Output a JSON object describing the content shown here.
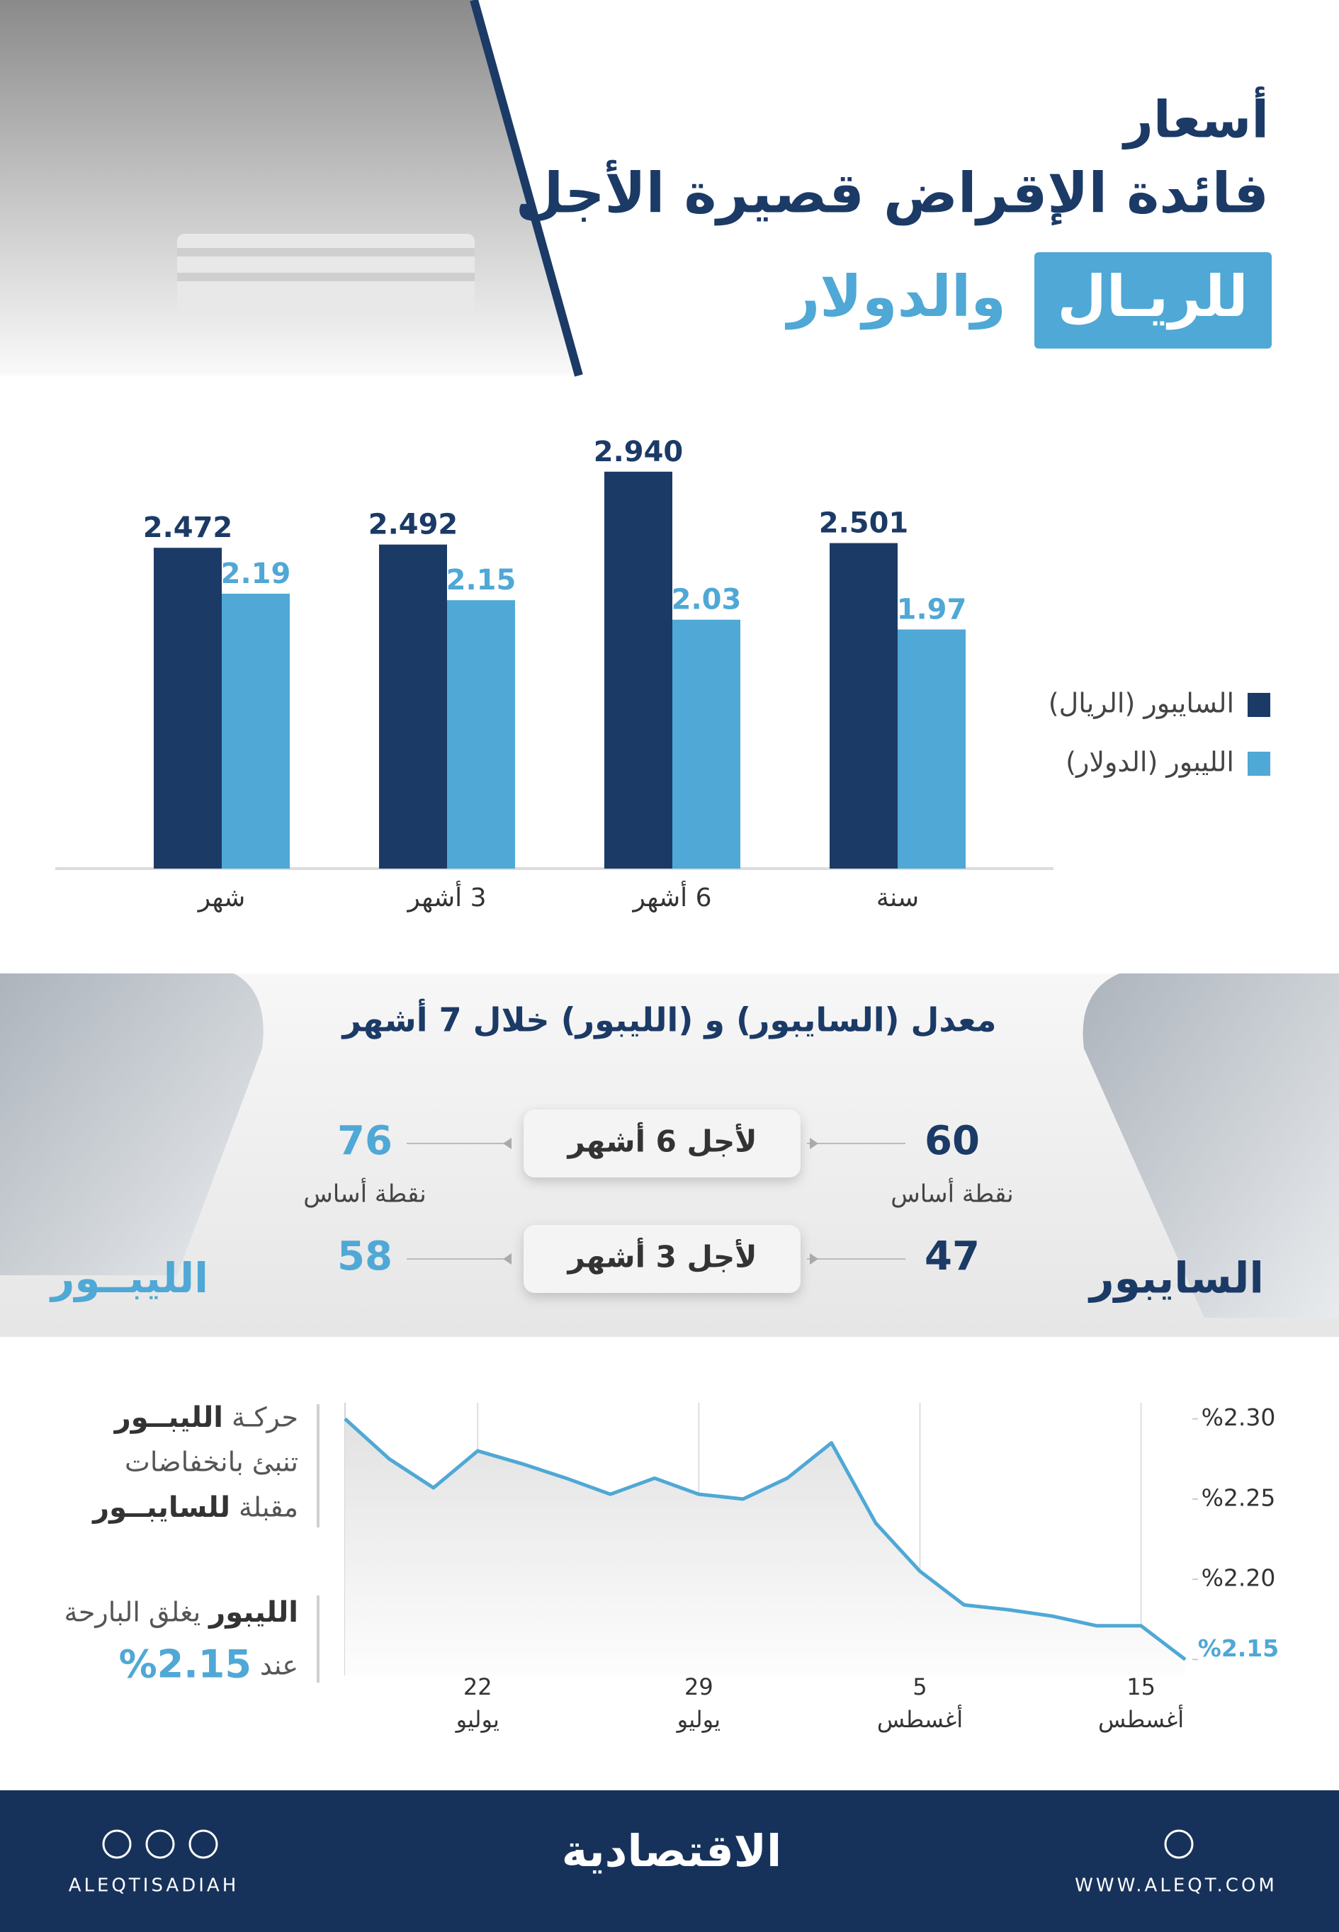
{
  "header": {
    "title": "أسعار",
    "subtitle": "فائدة الإقراض قصيرة الأجل",
    "highlight": "للريـال",
    "title_end": "والدولار"
  },
  "chart_data": [
    {
      "type": "bar",
      "categories": [
        "شهر",
        "3 أشهر",
        "6 أشهر",
        "سنة"
      ],
      "series": [
        {
          "name": "السايبور (الريال)",
          "color": "#1b3a66",
          "values": [
            2.472,
            2.492,
            2.94,
            2.501
          ],
          "value_labels": [
            "2.472",
            "2.492",
            "2.940",
            "2.501"
          ]
        },
        {
          "name": "الليبور (الدولار)",
          "color": "#4fa8d5",
          "values": [
            2.19,
            2.15,
            2.03,
            1.97
          ]
        }
      ],
      "ylim": [
        0.5,
        3.0
      ],
      "legend": "right"
    },
    {
      "type": "line",
      "categories": [
        null,
        null,
        null,
        "22\nيوليو",
        null,
        null,
        null,
        null,
        "29\nيوليو",
        null,
        null,
        null,
        null,
        "5\nأغسطس",
        null,
        null,
        null,
        null,
        "15\nأغسطس",
        null
      ],
      "values": [
        2.3,
        2.275,
        2.257,
        2.28,
        2.272,
        2.263,
        2.253,
        2.263,
        2.253,
        2.25,
        2.263,
        2.285,
        2.235,
        2.205,
        2.184,
        2.181,
        2.177,
        2.171,
        2.171,
        2.15
      ],
      "color": "#4fa8d5",
      "ylim": [
        2.14,
        2.31
      ],
      "yticks": [
        {
          "value": 2.3,
          "label": "%2.30"
        },
        {
          "value": 2.25,
          "label": "%2.25"
        },
        {
          "value": 2.2,
          "label": "%2.20"
        },
        {
          "value": 2.15,
          "label": "%2.15"
        }
      ],
      "grid": "x"
    }
  ],
  "stats": {
    "title": "معدل (السايبور) و (الليبور) خلال 7 أشهر",
    "unit": "نقطة أساس",
    "rows": [
      {
        "label": "لأجل 6 أشهر",
        "saibor": 60,
        "libor": 76
      },
      {
        "label": "لأجل 3 أشهر",
        "saibor": 47,
        "libor": 58
      }
    ],
    "saibor_label": "السايبور",
    "libor_label": "الليبــور"
  },
  "notes": [
    {
      "lines": [
        [
          {
            "text": "حركـة"
          },
          {
            "text": "الليبــور",
            "style": "bold"
          }
        ],
        [
          {
            "text": "تنبئ بانخفاضات"
          }
        ],
        [
          {
            "text": "مقبلة"
          },
          {
            "text": "للسايبــور",
            "style": "bold"
          }
        ]
      ]
    },
    {
      "lines": [
        [
          {
            "text": "الليبور",
            "style": "bold"
          },
          {
            "text": "يغلق البارحة"
          }
        ],
        [
          {
            "text": "عند"
          },
          {
            "text": "%2.15",
            "style": "highlight"
          }
        ]
      ]
    }
  ],
  "footer": {
    "logo": "الاقتصادية",
    "handle": "ALEQTISADIAH",
    "website": "WWW.ALEQT.COM"
  }
}
